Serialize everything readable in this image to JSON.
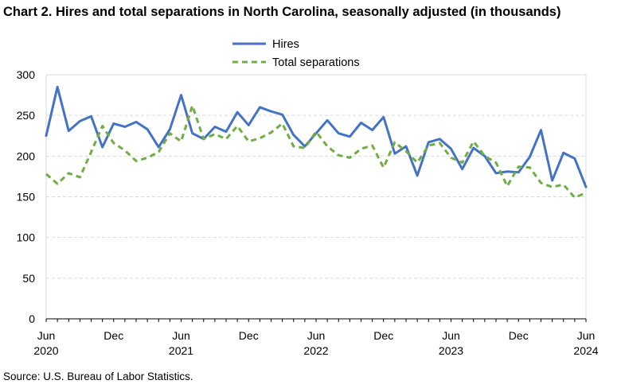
{
  "chart_data": {
    "type": "line",
    "title": "Chart 2. Hires and total separations in North Carolina, seasonally adjusted (in thousands)",
    "source": "Source: U.S. Bureau of Labor Statistics.",
    "xlabel": "",
    "ylabel": "",
    "ylim": [
      0,
      300
    ],
    "yticks": [
      0,
      50,
      100,
      150,
      200,
      250,
      300
    ],
    "grid": true,
    "legend_position": "top-center",
    "x_tick_labels": [
      {
        "index": 0,
        "month": "Jun",
        "year": "2020"
      },
      {
        "index": 6,
        "month": "Dec",
        "year": ""
      },
      {
        "index": 12,
        "month": "Jun",
        "year": "2021"
      },
      {
        "index": 18,
        "month": "Dec",
        "year": ""
      },
      {
        "index": 24,
        "month": "Jun",
        "year": "2022"
      },
      {
        "index": 30,
        "month": "Dec",
        "year": ""
      },
      {
        "index": 36,
        "month": "Jun",
        "year": "2023"
      },
      {
        "index": 42,
        "month": "Dec",
        "year": ""
      },
      {
        "index": 48,
        "month": "Jun",
        "year": "2024"
      }
    ],
    "series": [
      {
        "name": "Hires",
        "color": "#4472C4",
        "style": "solid",
        "values": [
          225,
          285,
          231,
          243,
          249,
          211,
          240,
          236,
          242,
          233,
          211,
          233,
          275,
          228,
          221,
          236,
          230,
          254,
          238,
          260,
          255,
          251,
          226,
          212,
          228,
          244,
          228,
          224,
          241,
          232,
          248,
          203,
          212,
          176,
          217,
          221,
          209,
          184,
          210,
          200,
          179,
          181,
          180,
          199,
          232,
          170,
          204,
          197,
          162
        ]
      },
      {
        "name": "Total separations",
        "color": "#70AD47",
        "style": "dashed",
        "values": [
          178,
          166,
          179,
          174,
          205,
          237,
          216,
          207,
          194,
          198,
          205,
          228,
          218,
          262,
          221,
          227,
          221,
          237,
          218,
          222,
          229,
          240,
          212,
          210,
          230,
          212,
          201,
          198,
          209,
          213,
          186,
          217,
          206,
          192,
          213,
          216,
          198,
          192,
          218,
          200,
          192,
          163,
          187,
          186,
          167,
          162,
          165,
          149,
          155
        ]
      }
    ]
  }
}
